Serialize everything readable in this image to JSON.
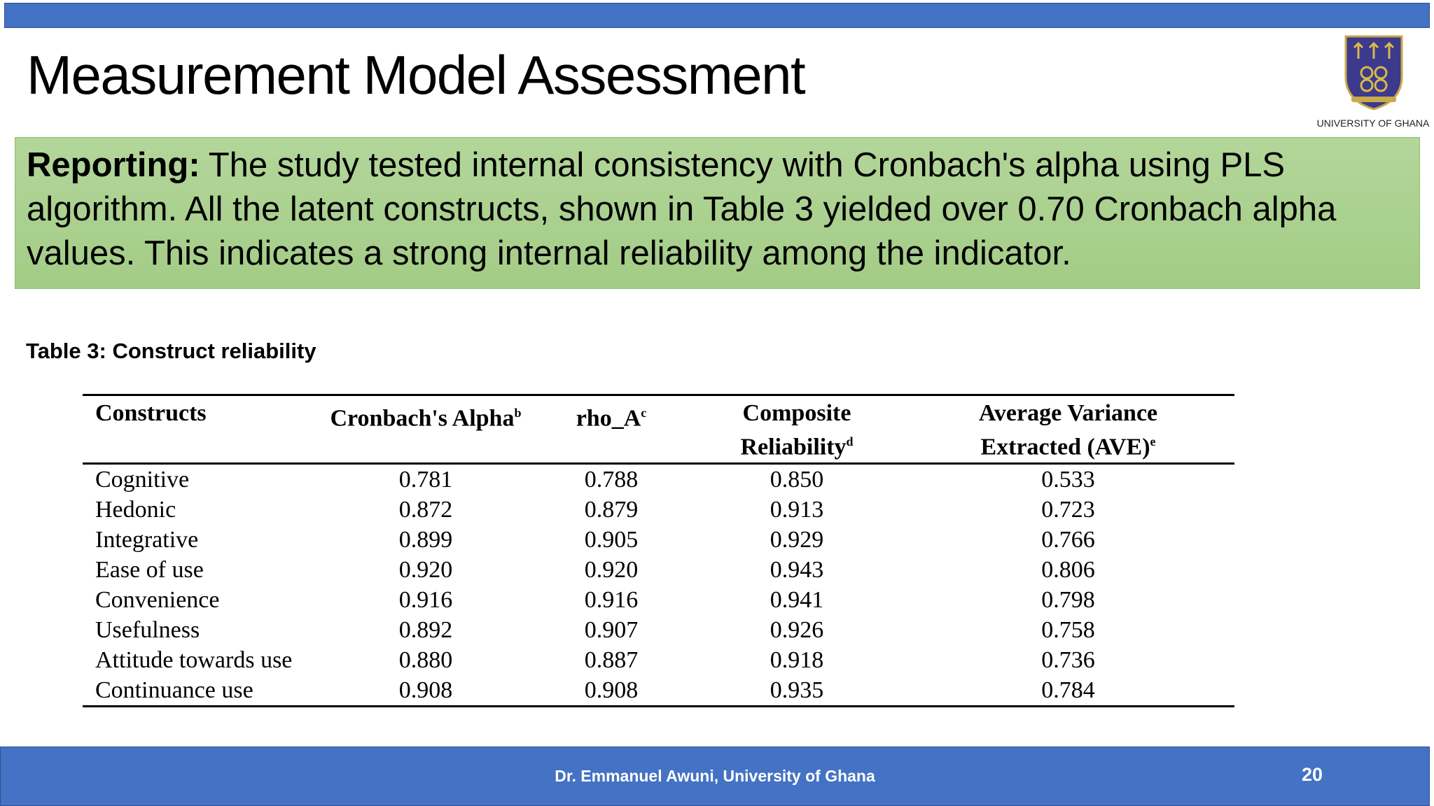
{
  "header": {
    "title": "Measurement Model Assessment",
    "logo_text": "UNIVERSITY OF GHANA"
  },
  "reporting": {
    "label": "Reporting:",
    "text": "The study tested internal consistency with Cronbach's alpha using PLS algorithm. All the latent constructs, shown in Table 3 yielded over 0.70 Cronbach alpha values. This indicates a strong internal reliability among the indicator."
  },
  "table": {
    "caption": "Table 3: Construct reliability",
    "columns": [
      {
        "lines": [
          "Constructs"
        ]
      },
      {
        "lines": [
          "Cronbach's Alpha"
        ],
        "sup": "b"
      },
      {
        "lines": [
          "rho_A"
        ],
        "sup": "c"
      },
      {
        "lines": [
          "Composite",
          "Reliability"
        ],
        "sup": "d"
      },
      {
        "lines": [
          "Average Variance",
          "Extracted (AVE)"
        ],
        "sup": "e"
      }
    ],
    "rows": [
      [
        "Cognitive",
        "0.781",
        "0.788",
        "0.850",
        "0.533"
      ],
      [
        "Hedonic",
        "0.872",
        "0.879",
        "0.913",
        "0.723"
      ],
      [
        "Integrative",
        "0.899",
        "0.905",
        "0.929",
        "0.766"
      ],
      [
        "Ease of use",
        "0.920",
        "0.920",
        "0.943",
        "0.806"
      ],
      [
        "Convenience",
        "0.916",
        "0.916",
        "0.941",
        "0.798"
      ],
      [
        "Usefulness",
        "0.892",
        "0.907",
        "0.926",
        "0.758"
      ],
      [
        "Attitude towards use",
        "0.880",
        "0.887",
        "0.918",
        "0.736"
      ],
      [
        "Continuance use",
        "0.908",
        "0.908",
        "0.935",
        "0.784"
      ]
    ]
  },
  "footer": {
    "text": "Dr. Emmanuel Awuni, University of Ghana",
    "page": "20"
  }
}
